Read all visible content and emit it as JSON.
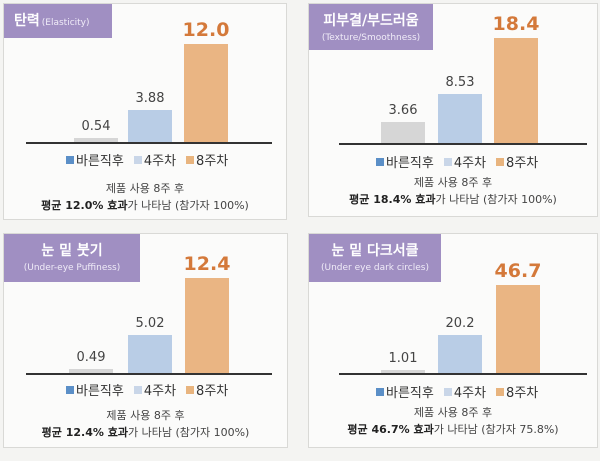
{
  "colors": {
    "title_bg": "#a08fc2",
    "bar_initial": "#d6d6d6",
    "bar_week4": "#b9cde6",
    "bar_week8": "#eab583",
    "legend_initial": "#5b8fc7",
    "legend_week4": "#c9d6e8",
    "legend_week8": "#e8b47e",
    "highlight_text": "#d4793a"
  },
  "legend": [
    "바른직후",
    "4주차",
    "8주차"
  ],
  "chart_data": [
    {
      "type": "bar",
      "title": "탄력",
      "subtitle": "(Elasticity)",
      "categories": [
        "바른직후",
        "4주차",
        "8주차"
      ],
      "values": [
        0.54,
        3.88,
        12.0
      ],
      "labels": [
        "0.54",
        "3.88",
        "12.0"
      ],
      "ylim": [
        0,
        13
      ],
      "note_line1": "제품 사용 8주 후",
      "note_bold": "평균 12.0% 효과",
      "note_rest": "가 나타남 (참가자 100%)"
    },
    {
      "type": "bar",
      "title": "피부결/부드러움",
      "subtitle": "(Texture/Smoothness)",
      "categories": [
        "바른직후",
        "4주차",
        "8주차"
      ],
      "values": [
        3.66,
        8.53,
        18.4
      ],
      "labels": [
        "3.66",
        "8.53",
        "18.4"
      ],
      "ylim": [
        0,
        19.5
      ],
      "note_line1": "제품 사용 8주 후",
      "note_bold": "평균 18.4% 효과",
      "note_rest": "가 나타남 (참가자 100%)"
    },
    {
      "type": "bar",
      "title": "눈 밑 붓기",
      "subtitle": "(Under-eye Puffiness)",
      "categories": [
        "바른직후",
        "4주차",
        "8주차"
      ],
      "values": [
        0.49,
        5.02,
        12.4
      ],
      "labels": [
        "0.49",
        "5.02",
        "12.4"
      ],
      "ylim": [
        0,
        13.5
      ],
      "note_line1": "제품 사용 8주 후",
      "note_bold": "평균 12.4% 효과",
      "note_rest": "가 나타남 (참가자 100%)"
    },
    {
      "type": "bar",
      "title": "눈 밑 다크서클",
      "subtitle": "(Under eye dark circles)",
      "categories": [
        "바른직후",
        "4주차",
        "8주차"
      ],
      "values": [
        1.01,
        20.2,
        46.7
      ],
      "labels": [
        "1.01",
        "20.2",
        "46.7"
      ],
      "ylim": [
        0,
        51
      ],
      "note_line1": "제품 사용 8주 후",
      "note_bold": "평균 46.7% 효과",
      "note_rest": "가 나타남 (참가자 75.8%)"
    }
  ]
}
